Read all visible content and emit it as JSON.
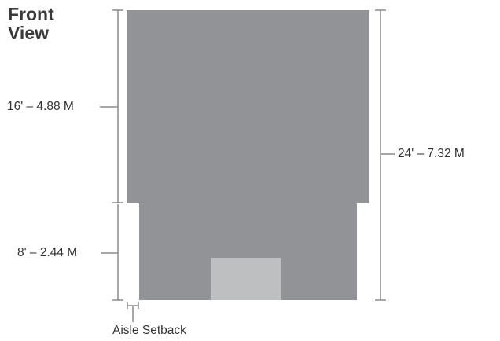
{
  "title": {
    "line1": "Front",
    "line2": "View"
  },
  "dimensions": {
    "upper_section": "16' – 4.88 M",
    "lower_section": "8' – 2.44 M",
    "total_height": "24' – 7.32 M",
    "setback": "Aisle Setback"
  },
  "colors": {
    "structure": "#929396",
    "door": "#bebfc1",
    "dimension_line": "#8a8a8c",
    "text": "#333333"
  }
}
